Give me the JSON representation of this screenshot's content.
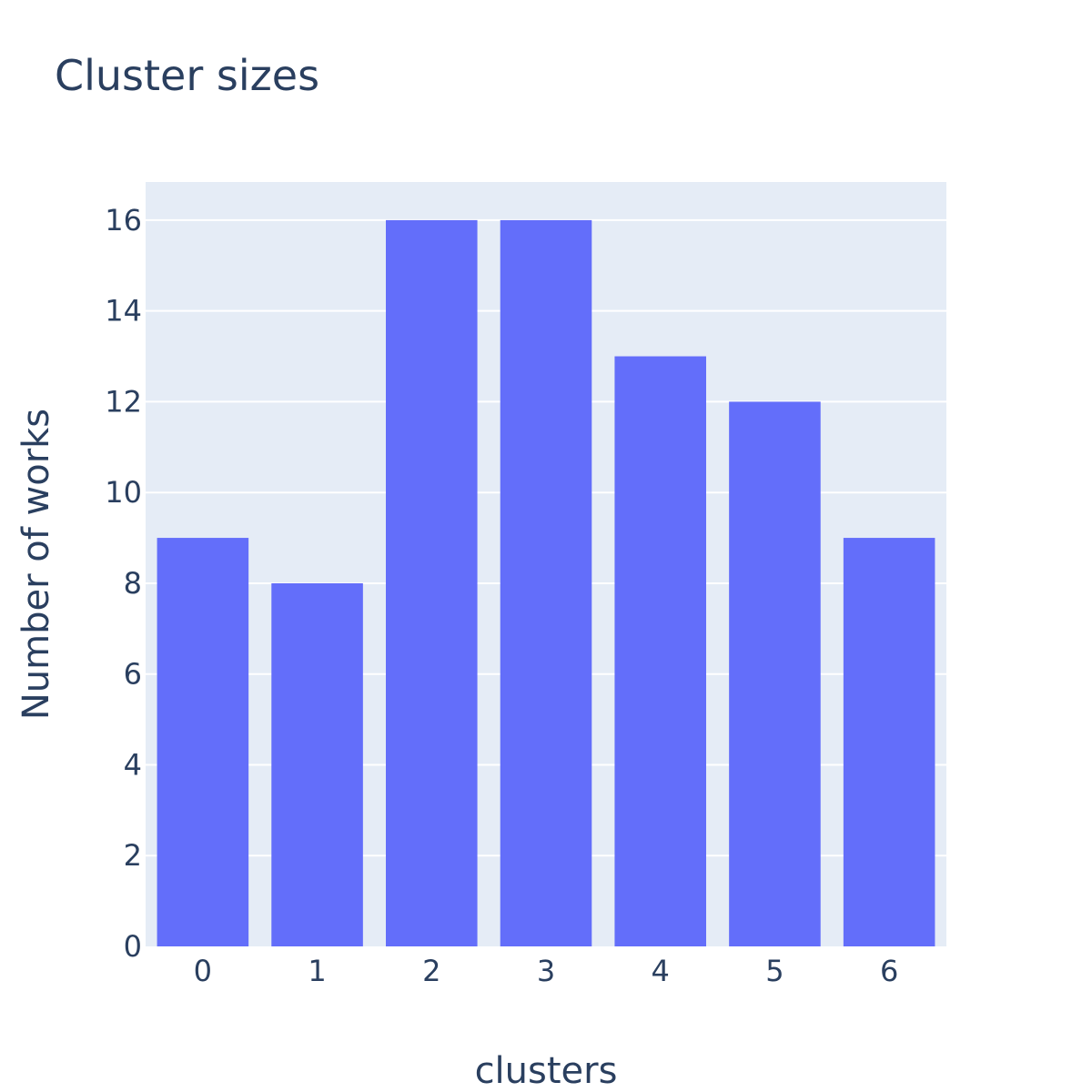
{
  "chart_data": {
    "type": "bar",
    "title": "Cluster sizes",
    "xlabel": "clusters",
    "ylabel": "Number of works",
    "categories": [
      "0",
      "1",
      "2",
      "3",
      "4",
      "5",
      "6"
    ],
    "values": [
      9,
      8,
      16,
      16,
      13,
      12,
      9
    ],
    "ylim": [
      0,
      16.84
    ],
    "yticks": [
      "0",
      "2",
      "4",
      "6",
      "8",
      "10",
      "12",
      "14",
      "16"
    ],
    "grid": true,
    "legend": "none",
    "colors": {
      "bar": "#636efa",
      "plot_background": "#e5ecf6",
      "text": "#2a3f5f",
      "grid": "#ffffff"
    }
  }
}
